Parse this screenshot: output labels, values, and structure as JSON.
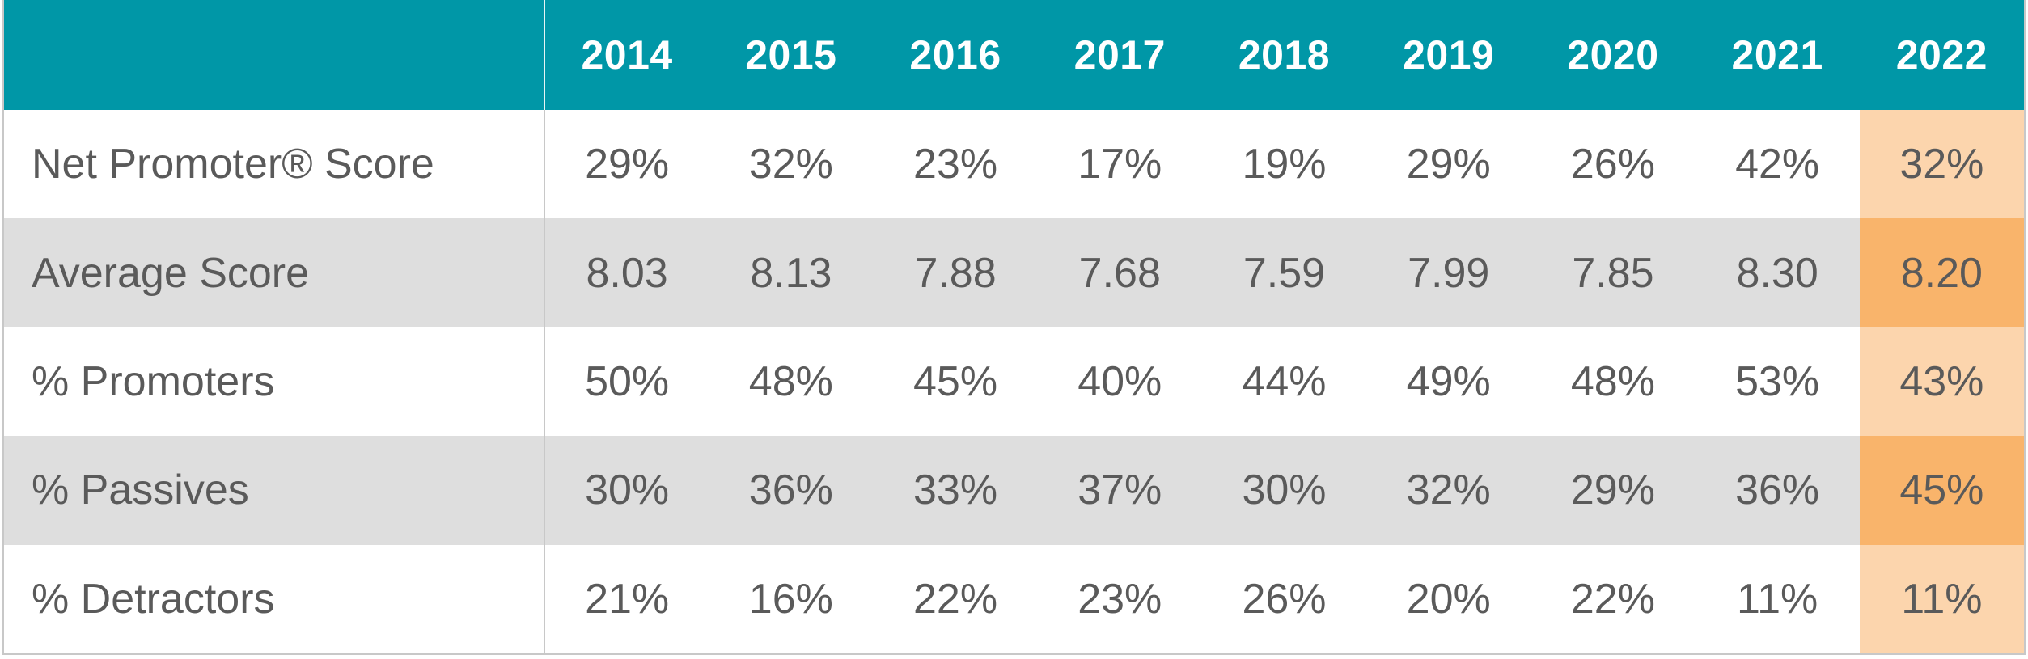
{
  "chart_data": {
    "type": "table",
    "columns": [
      "2014",
      "2015",
      "2016",
      "2017",
      "2018",
      "2019",
      "2020",
      "2021",
      "2022"
    ],
    "highlight_column": "2022",
    "rows": [
      {
        "label": "Net Promoter® Score",
        "values": [
          "29%",
          "32%",
          "23%",
          "17%",
          "19%",
          "29%",
          "26%",
          "42%",
          "32%"
        ]
      },
      {
        "label": "Average Score",
        "values": [
          "8.03",
          "8.13",
          "7.88",
          "7.68",
          "7.59",
          "7.99",
          "7.85",
          "8.30",
          "8.20"
        ]
      },
      {
        "label": "% Promoters",
        "values": [
          "50%",
          "48%",
          "45%",
          "40%",
          "44%",
          "49%",
          "48%",
          "53%",
          "43%"
        ]
      },
      {
        "label": "% Passives",
        "values": [
          "30%",
          "36%",
          "33%",
          "37%",
          "30%",
          "32%",
          "29%",
          "36%",
          "45%"
        ]
      },
      {
        "label": "% Detractors",
        "values": [
          "21%",
          "16%",
          "22%",
          "23%",
          "26%",
          "20%",
          "22%",
          "11%",
          "11%"
        ]
      }
    ],
    "colors": {
      "header_background": "#0097a7",
      "header_text": "#ffffff",
      "body_text": "#5a5a5a",
      "stripe_background": "#dedede",
      "highlight_light": "#fcd5ad",
      "highlight_dark": "#f9b46b"
    }
  }
}
